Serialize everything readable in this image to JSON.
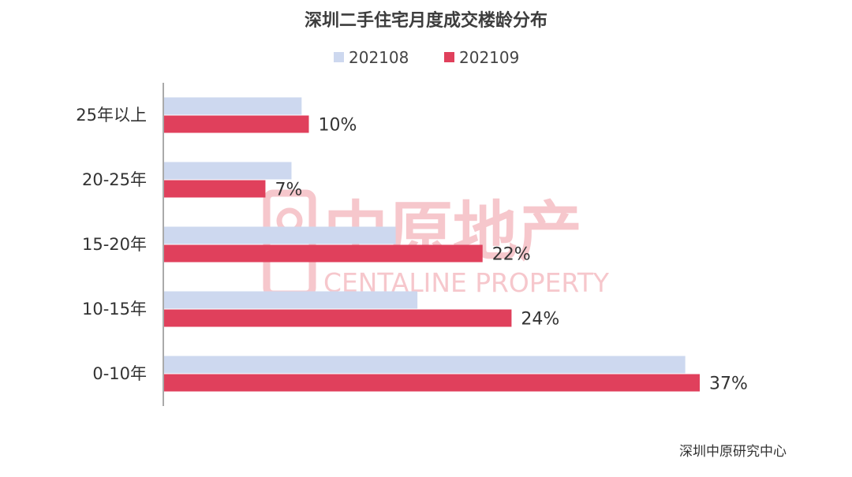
{
  "chart_data": {
    "type": "bar",
    "orientation": "horizontal",
    "title": "深圳二手住宅月度成交楼龄分布",
    "categories": [
      "25年以上",
      "20-25年",
      "15-20年",
      "10-15年",
      "0-10年"
    ],
    "series": [
      {
        "name": "202108",
        "color": "#cdd8ef",
        "values": [
          9.5,
          8.8,
          16.0,
          17.5,
          36.0
        ],
        "show_labels": false
      },
      {
        "name": "202109",
        "color": "#e0405c",
        "values": [
          10,
          7,
          22,
          24,
          37
        ],
        "labels": [
          "10%",
          "7%",
          "22%",
          "24%",
          "37%"
        ],
        "show_labels": true
      }
    ],
    "xlim": [
      0,
      40
    ],
    "grid": false,
    "legend_position": "top"
  },
  "watermark": {
    "cn": "中原地产",
    "en": "CENTALINE PROPERTY",
    "color": "#f6c7cc"
  },
  "source": "深圳中原研究中心"
}
